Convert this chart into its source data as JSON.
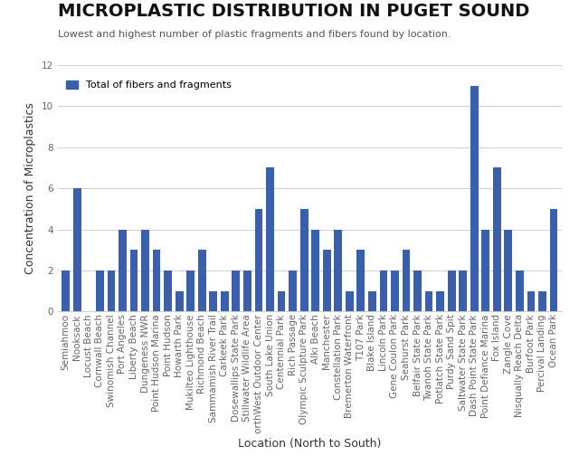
{
  "title": "MICROPLASTIC DISTRIBUTION IN PUGET SOUND",
  "subtitle": "Lowest and highest number of plastic fragments and fibers found by location.",
  "xlabel": "Location (North to South)",
  "ylabel": "Concentration of Microplastics",
  "legend_label": "Total of fibers and fragments",
  "bar_color": "#3a5fad",
  "ylim": [
    0,
    12
  ],
  "yticks": [
    0,
    2,
    4,
    6,
    8,
    10,
    12
  ],
  "locations": [
    "Semiahmoo",
    "Nooksack",
    "Locust Beach",
    "Cornwall Beach",
    "Swinomish Channel",
    "Port Angeles",
    "Liberty Beach",
    "Dungeness NWR",
    "Point Hudson Marina",
    "Point Hudson",
    "Howarth Park",
    "Mukilteo Lighthouse",
    "Richmond Beach",
    "Sammamish River Trail",
    "Carkeek Park",
    "Dosewallips State Park",
    "Stillwater Wildlife Area",
    "orthWest Outdoor Center",
    "South Lake Union",
    "Centennial Park",
    "Rich Passage",
    "Olympic Sculpture Park",
    "Alki Beach",
    "Manchester",
    "Constellation Park",
    "Bremerton Waterfront",
    "T107 Park",
    "Blake Island",
    "Lincoln Park",
    "Gene Coulon Park",
    "Seahurst Park",
    "Belfair State Park",
    "Twanoh State Park",
    "Potlatch State Park",
    "Purdy Sand Spit",
    "Saltwater State Park",
    "Dash Point State Park",
    "Point Defiance Marina",
    "Fox Island",
    "Zangle Cove",
    "Nisqually Reach Delta",
    "Burfoot Park",
    "Percival Landing",
    "Ocean Park"
  ],
  "values": [
    2,
    6,
    0,
    2,
    2,
    4,
    3,
    4,
    3,
    2,
    1,
    2,
    3,
    1,
    1,
    2,
    2,
    5,
    7,
    1,
    2,
    5,
    4,
    3,
    4,
    1,
    3,
    1,
    2,
    2,
    3,
    2,
    1,
    1,
    2,
    2,
    11,
    4,
    7,
    4,
    2,
    1,
    1,
    5
  ],
  "title_fontsize": 14,
  "subtitle_fontsize": 8,
  "xlabel_fontsize": 9,
  "ylabel_fontsize": 9,
  "tick_fontsize": 7.5,
  "legend_fontsize": 8
}
